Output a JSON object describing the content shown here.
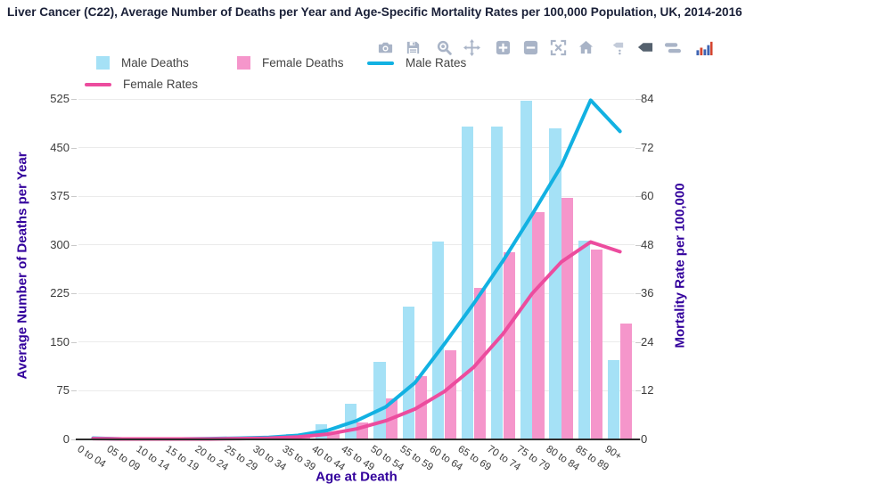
{
  "title": "Liver Cancer (C22), Average Number of Deaths per Year and Age-Specific Mortality Rates per 100,000 Population, UK, 2014-2016",
  "modebar": {
    "icons": [
      "camera",
      "save",
      "zoom",
      "pan",
      "zoom-in",
      "zoom-out",
      "autoscale",
      "reset-axes",
      "show-closest-on-hover",
      "compare-data-on-hover",
      "toggle-spike-lines",
      "plotly-logo"
    ]
  },
  "legend": {
    "items": [
      "Male Deaths",
      "Female Deaths",
      "Male Rates",
      "Female Rates"
    ]
  },
  "colors": {
    "male_bar": "#A5E1F6",
    "female_bar": "#F596CB",
    "male_line": "#12B1E2",
    "female_line": "#EC4C9E",
    "axis_title": "#32009c",
    "title_text": "#1a2038",
    "tick_text": "#3c3c3c",
    "gridline": "#ebebeb"
  },
  "chart_data": {
    "type": "bar-line-combo",
    "title": "Liver Cancer (C22), Average Number of Deaths per Year and Age-Specific Mortality Rates per 100,000 Population, UK, 2014-2016",
    "categories": [
      "0 to 04",
      "05 to 09",
      "10 to 14",
      "15 to 19",
      "20 to 24",
      "25 to 29",
      "30 to 34",
      "35 to 39",
      "40 to 44",
      "45 to 49",
      "50 to 54",
      "55 to 59",
      "60 to 64",
      "65 to 69",
      "70 to 74",
      "75 to 79",
      "80 to 84",
      "85 to 89",
      "90+"
    ],
    "series": [
      {
        "name": "Male Deaths",
        "type": "bar",
        "yaxis": "left",
        "color": "#A5E1F6",
        "values": [
          2,
          0,
          0,
          1,
          1,
          1,
          4,
          8,
          24,
          55,
          120,
          205,
          305,
          483,
          483,
          522,
          480,
          306,
          123
        ]
      },
      {
        "name": "Female Deaths",
        "type": "bar",
        "yaxis": "left",
        "color": "#F596CB",
        "values": [
          1,
          0,
          0,
          0,
          1,
          1,
          2,
          3,
          10,
          26,
          63,
          97,
          138,
          233,
          288,
          350,
          373,
          293,
          179
        ]
      },
      {
        "name": "Male Rates",
        "type": "line",
        "yaxis": "right",
        "color": "#12B1E2",
        "values": [
          0.3,
          0.1,
          0.1,
          0.1,
          0.2,
          0.3,
          0.5,
          1,
          2.2,
          4.6,
          8,
          14,
          23.5,
          33.5,
          44,
          55.5,
          67.5,
          83.7,
          76
        ]
      },
      {
        "name": "Female Rates",
        "type": "line",
        "yaxis": "right",
        "color": "#EC4C9E",
        "values": [
          0.2,
          0.1,
          0.1,
          0.1,
          0.1,
          0.2,
          0.3,
          0.6,
          1.3,
          2.6,
          4.6,
          7.5,
          11.8,
          17.8,
          26,
          36,
          43.8,
          48.7,
          46.3
        ]
      }
    ],
    "y_left": {
      "label": "Average Number of Deaths per Year",
      "ticks": [
        0,
        75,
        150,
        225,
        300,
        375,
        450,
        525
      ],
      "max": 525
    },
    "y_right": {
      "label": "Mortality Rate per 100,000",
      "ticks": [
        0,
        12,
        24,
        36,
        48,
        60,
        72,
        84
      ],
      "max": 84
    },
    "x": {
      "label": "Age at Death"
    },
    "legend_position": "top",
    "grid": "horizontal"
  }
}
